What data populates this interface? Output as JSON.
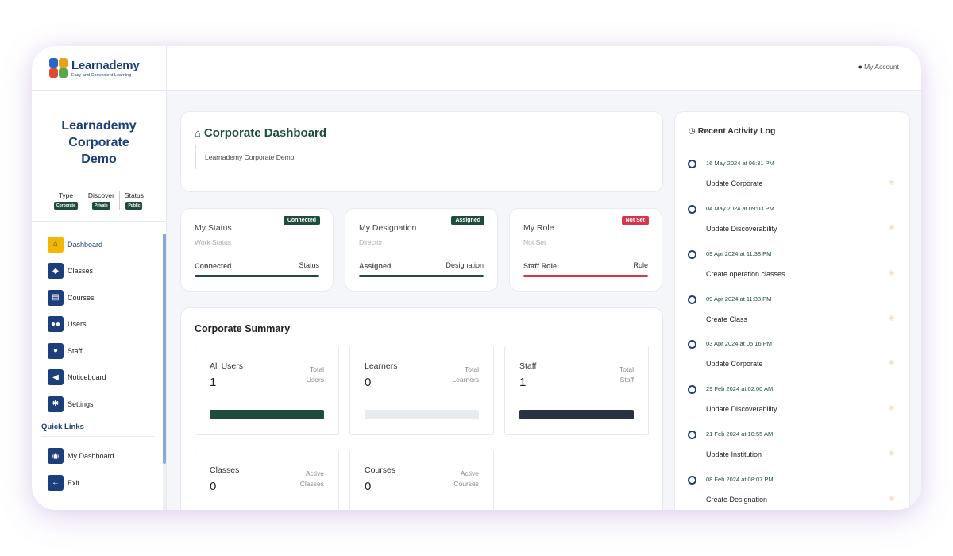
{
  "brand": {
    "name": "Learnademy",
    "tagline": "Easy and Convenient Learning"
  },
  "org": {
    "title_line1": "Learnademy",
    "title_line2": "Corporate",
    "title_line3": "Demo",
    "meta": [
      {
        "label": "Type",
        "badge": "Corporate"
      },
      {
        "label": "Discover",
        "badge": "Private"
      },
      {
        "label": "Status",
        "badge": "Public"
      }
    ]
  },
  "nav": {
    "items": [
      {
        "label": "Dashboard",
        "icon": "home-icon"
      },
      {
        "label": "Classes",
        "icon": "graduation-cap-icon"
      },
      {
        "label": "Courses",
        "icon": "book-icon"
      },
      {
        "label": "Users",
        "icon": "users-icon"
      },
      {
        "label": "Staff",
        "icon": "user-icon"
      },
      {
        "label": "Noticeboard",
        "icon": "megaphone-icon"
      },
      {
        "label": "Settings",
        "icon": "gear-icon"
      }
    ],
    "quick_links_title": "Quick Links",
    "quick_links": [
      {
        "label": "My Dashboard",
        "icon": "user-circle-icon"
      },
      {
        "label": "Exit",
        "icon": "arrow-left-icon"
      }
    ]
  },
  "header": {
    "account_label": "My Account"
  },
  "dashboard": {
    "title": "Corporate Dashboard",
    "subtitle": "Learnademy Corporate Demo"
  },
  "stats": [
    {
      "title": "My Status",
      "sub": "Work Status",
      "badge": "Connected",
      "left": "Connected",
      "right": "Status",
      "color": "#1e4d3e"
    },
    {
      "title": "My Designation",
      "sub": "Director",
      "badge": "Assigned",
      "left": "Assigned",
      "right": "Designation",
      "color": "#1e4d3e"
    },
    {
      "title": "My Role",
      "sub": "Not Set",
      "badge": "Not Set",
      "left": "Staff Role",
      "right": "Role",
      "color": "#d9344b"
    }
  ],
  "summary": {
    "title": "Corporate Summary",
    "tiles": [
      {
        "name": "All Users",
        "value": "1",
        "label_line1": "Total",
        "label_line2": "Users",
        "bar_color": "#1e4d3e"
      },
      {
        "name": "Learners",
        "value": "0",
        "label_line1": "Total",
        "label_line2": "Learners",
        "bar_color": "#e9ecef"
      },
      {
        "name": "Staff",
        "value": "1",
        "label_line1": "Total",
        "label_line2": "Staff",
        "bar_color": "#2a3140"
      },
      {
        "name": "Classes",
        "value": "0",
        "label_line1": "Active",
        "label_line2": "Classes",
        "bar_color": ""
      },
      {
        "name": "Courses",
        "value": "0",
        "label_line1": "Active",
        "label_line2": "Courses",
        "bar_color": ""
      }
    ]
  },
  "activity": {
    "title": "Recent Activity Log",
    "entries": [
      {
        "date": "16 May 2024 at 06:31 PM",
        "action": "Update Corporate"
      },
      {
        "date": "04 May 2024 at 09:03 PM",
        "action": "Update Discoverability"
      },
      {
        "date": "09 Apr 2024 at 11:38 PM",
        "action": "Create operation classes"
      },
      {
        "date": "09 Apr 2024 at 11:38 PM",
        "action": "Create Class"
      },
      {
        "date": "03 Apr 2024 at 05:16 PM",
        "action": "Update Corporate"
      },
      {
        "date": "29 Feb 2024 at 02:00 AM",
        "action": "Update Discoverability"
      },
      {
        "date": "21 Feb 2024 at 10:55 AM",
        "action": "Update Institution"
      },
      {
        "date": "08 Feb 2024 at 08:07 PM",
        "action": "Create Designation"
      }
    ]
  },
  "colors": {
    "primary": "#1c3f7c",
    "accent_green": "#1e4d3e",
    "active_nav": "#f2b705",
    "danger": "#d9344b"
  }
}
